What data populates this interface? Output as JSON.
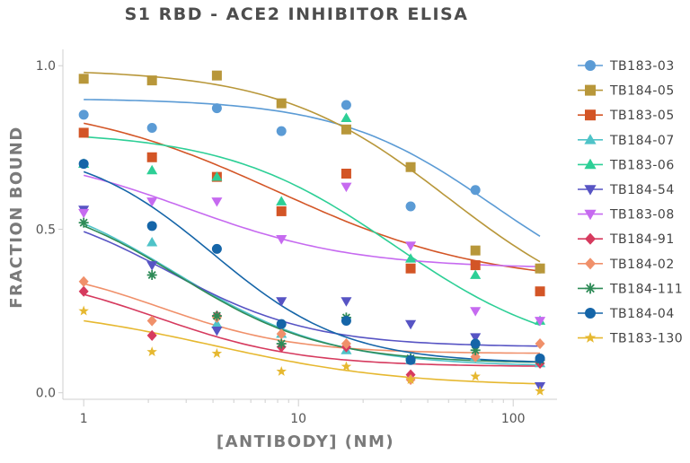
{
  "chart_data": {
    "type": "scatter",
    "title": "S1 RBD - ACE2 INHIBITOR ELISA",
    "xlabel": "[ANTIBODY] (NM)",
    "ylabel": "FRACTION BOUND",
    "xscale": "log",
    "xlim": [
      0.8,
      160
    ],
    "ylim": [
      -0.02,
      1.05
    ],
    "xticks": [
      1,
      10,
      100
    ],
    "xtick_labels": [
      "1",
      "10",
      "100"
    ],
    "yticks": [
      0.0,
      0.5,
      1.0
    ],
    "ytick_labels": [
      "0.0",
      "0.5",
      "1.0"
    ],
    "grid": false,
    "legend_position": "right",
    "x": [
      1,
      2.08,
      4.17,
      8.33,
      16.7,
      33.3,
      66.7,
      133.3
    ],
    "series": [
      {
        "name": "TB183-03",
        "color": "#5b9bd5",
        "marker": "circle",
        "values": [
          0.85,
          0.81,
          0.87,
          0.8,
          0.88,
          0.57,
          0.62,
          0.38
        ],
        "fit": {
          "top": 0.9,
          "bottom": 0.25,
          "ec50": 80,
          "hill": 1.2
        }
      },
      {
        "name": "TB184-05",
        "color": "#b8973a",
        "marker": "square",
        "values": [
          0.96,
          0.955,
          0.97,
          0.885,
          0.805,
          0.69,
          0.435,
          0.38
        ],
        "fit": {
          "top": 0.99,
          "bottom": 0.2,
          "ec50": 50,
          "hill": 1.1
        }
      },
      {
        "name": "TB183-05",
        "color": "#d35526",
        "marker": "square",
        "values": [
          0.795,
          0.72,
          0.66,
          0.555,
          0.67,
          0.38,
          0.39,
          0.31
        ],
        "fit": {
          "top": 0.9,
          "bottom": 0.33,
          "ec50": 8,
          "hill": 0.9
        }
      },
      {
        "name": "TB184-07",
        "color": "#4fc3c8",
        "marker": "triangle-up",
        "values": [
          0.7,
          0.46,
          0.21,
          0.18,
          0.13,
          0.1,
          0.11,
          0.09
        ],
        "fit": {
          "top": 0.65,
          "bottom": 0.08,
          "ec50": 2.7,
          "hill": 1.2
        }
      },
      {
        "name": "TB183-06",
        "color": "#2dcf96",
        "marker": "triangle-up",
        "values": [
          0.7,
          0.68,
          0.66,
          0.585,
          0.84,
          0.41,
          0.36,
          0.22
        ],
        "fit": {
          "top": 0.8,
          "bottom": 0.1,
          "ec50": 28,
          "hill": 1.1
        }
      },
      {
        "name": "TB184-54",
        "color": "#5754c4",
        "marker": "triangle-down",
        "values": [
          0.56,
          0.39,
          0.19,
          0.28,
          0.28,
          0.21,
          0.17,
          0.02
        ],
        "fit": {
          "top": 0.6,
          "bottom": 0.14,
          "ec50": 2.5,
          "hill": 1.3
        }
      },
      {
        "name": "TB183-08",
        "color": "#c66af0",
        "marker": "triangle-down",
        "values": [
          0.55,
          0.585,
          0.585,
          0.47,
          0.63,
          0.45,
          0.25,
          0.22
        ],
        "fit": {
          "top": 0.75,
          "bottom": 0.38,
          "ec50": 3,
          "hill": 1.1
        }
      },
      {
        "name": "TB184-91",
        "color": "#d63a5e",
        "marker": "diamond",
        "values": [
          0.31,
          0.175,
          0.235,
          0.14,
          0.14,
          0.055,
          0.11,
          0.09
        ],
        "fit": {
          "top": 0.38,
          "bottom": 0.08,
          "ec50": 2.2,
          "hill": 1.3
        }
      },
      {
        "name": "TB184-02",
        "color": "#f0906a",
        "marker": "diamond",
        "values": [
          0.34,
          0.22,
          0.23,
          0.18,
          0.15,
          0.04,
          0.11,
          0.15
        ],
        "fit": {
          "top": 0.4,
          "bottom": 0.12,
          "ec50": 2.3,
          "hill": 1.4
        }
      },
      {
        "name": "TB184-111",
        "color": "#2e8b57",
        "marker": "asterisk",
        "values": [
          0.52,
          0.36,
          0.235,
          0.15,
          0.23,
          0.105,
          0.13,
          0.1
        ],
        "fit": {
          "top": 0.62,
          "bottom": 0.09,
          "ec50": 2.8,
          "hill": 1.3
        }
      },
      {
        "name": "TB184-04",
        "color": "#1565a8",
        "marker": "circle",
        "values": [
          0.7,
          0.51,
          0.44,
          0.21,
          0.22,
          0.1,
          0.15,
          0.105
        ],
        "fit": {
          "top": 0.76,
          "bottom": 0.09,
          "ec50": 4,
          "hill": 1.4
        }
      },
      {
        "name": "TB183-130",
        "color": "#e6b830",
        "marker": "star",
        "values": [
          0.25,
          0.125,
          0.12,
          0.065,
          0.08,
          0.04,
          0.05,
          0.005
        ],
        "fit": {
          "top": 0.27,
          "bottom": 0.02,
          "ec50": 4,
          "hill": 1.0
        }
      }
    ]
  }
}
